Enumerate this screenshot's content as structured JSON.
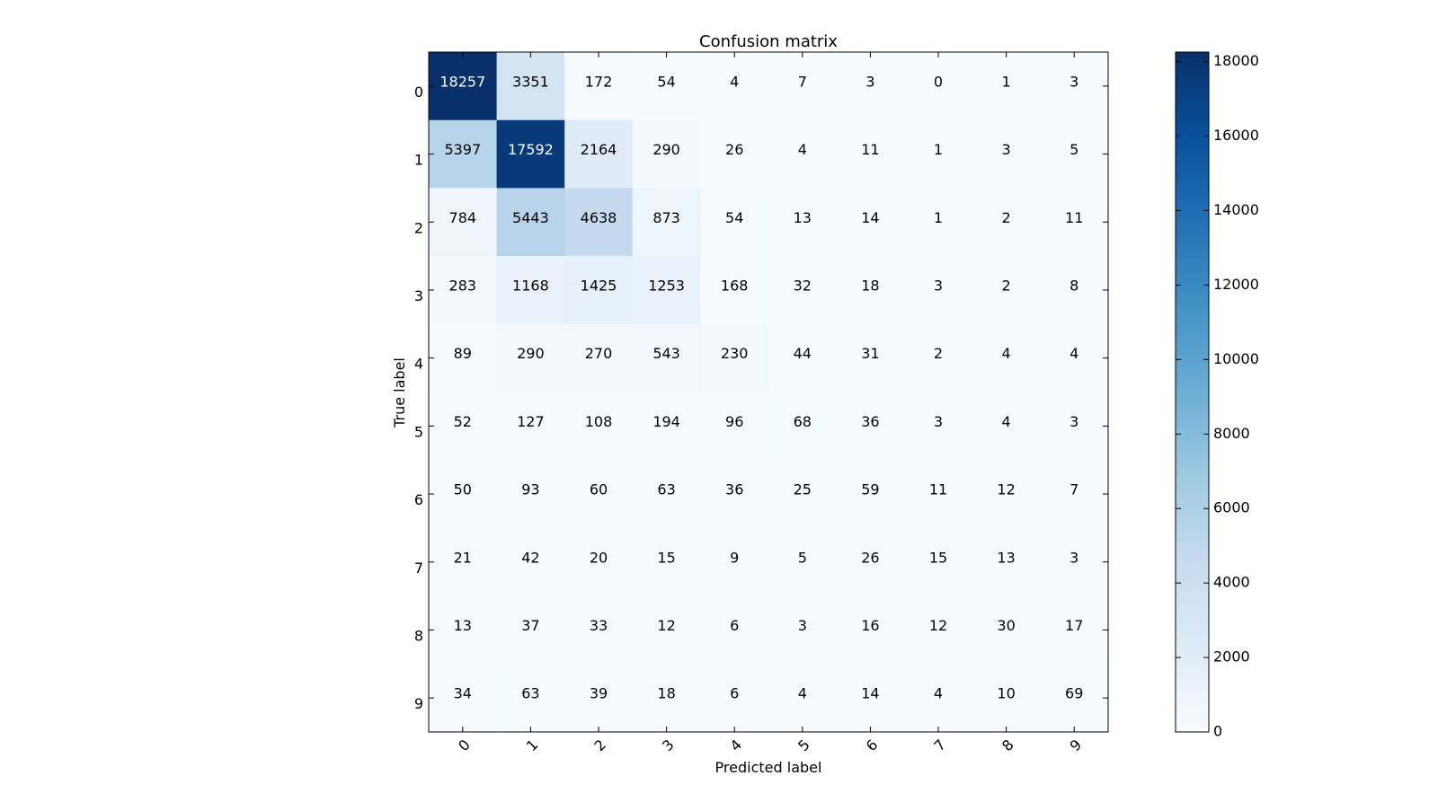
{
  "chart_data": {
    "type": "heatmap",
    "title": "Confusion matrix",
    "xlabel": "Predicted label",
    "ylabel": "True label",
    "x_categories": [
      "0",
      "1",
      "2",
      "3",
      "4",
      "5",
      "6",
      "7",
      "8",
      "9"
    ],
    "y_categories": [
      "0",
      "1",
      "2",
      "3",
      "4",
      "5",
      "6",
      "7",
      "8",
      "9"
    ],
    "matrix": [
      [
        18257,
        3351,
        172,
        54,
        4,
        7,
        3,
        0,
        1,
        3
      ],
      [
        5397,
        17592,
        2164,
        290,
        26,
        4,
        11,
        1,
        3,
        5
      ],
      [
        784,
        5443,
        4638,
        873,
        54,
        13,
        14,
        1,
        2,
        11
      ],
      [
        283,
        1168,
        1425,
        1253,
        168,
        32,
        18,
        3,
        2,
        8
      ],
      [
        89,
        290,
        270,
        543,
        230,
        44,
        31,
        2,
        4,
        4
      ],
      [
        52,
        127,
        108,
        194,
        96,
        68,
        36,
        3,
        4,
        3
      ],
      [
        50,
        93,
        60,
        63,
        36,
        25,
        59,
        11,
        12,
        7
      ],
      [
        21,
        42,
        20,
        15,
        9,
        5,
        26,
        15,
        13,
        3
      ],
      [
        13,
        37,
        33,
        12,
        6,
        3,
        16,
        12,
        30,
        17
      ],
      [
        34,
        63,
        39,
        18,
        6,
        4,
        14,
        4,
        10,
        69
      ]
    ],
    "colormap": "Blues",
    "color_range": [
      0,
      18257
    ],
    "colorbar_ticks": [
      "0",
      "2000",
      "4000",
      "6000",
      "8000",
      "10000",
      "12000",
      "14000",
      "16000",
      "18000"
    ],
    "colorbar_tick_values": [
      0,
      2000,
      4000,
      6000,
      8000,
      10000,
      12000,
      14000,
      16000,
      18000
    ]
  }
}
